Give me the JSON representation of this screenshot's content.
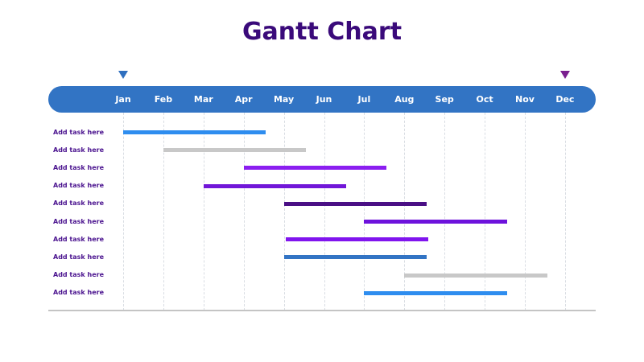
{
  "title": "Gantt Chart",
  "months": [
    "Jan",
    "Feb",
    "Mar",
    "Apr",
    "May",
    "Jun",
    "Jul",
    "Aug",
    "Sep",
    "Oct",
    "Nov",
    "Dec"
  ],
  "colors": {
    "title": "#3a0a7a",
    "header": "#3274c4",
    "start_marker": "#2f6fbf",
    "end_marker": "#7a1f8f",
    "label": "#4b148f"
  },
  "markers": {
    "start_month": "Jan",
    "end_month": "Dec"
  },
  "tasks": [
    {
      "label": "Add task here",
      "start": 0.0,
      "end": 3.55,
      "color": "#2e8def"
    },
    {
      "label": "Add task here",
      "start": 1.0,
      "end": 4.55,
      "color": "#c8c8c8"
    },
    {
      "label": "Add task here",
      "start": 3.0,
      "end": 6.55,
      "color": "#8b1ef0"
    },
    {
      "label": "Add task here",
      "start": 2.0,
      "end": 5.55,
      "color": "#7116d8"
    },
    {
      "label": "Add task here",
      "start": 4.0,
      "end": 7.55,
      "color": "#4a0f85"
    },
    {
      "label": "Add task here",
      "start": 6.0,
      "end": 9.55,
      "color": "#6d12dc"
    },
    {
      "label": "Add task here",
      "start": 4.05,
      "end": 7.6,
      "color": "#8015ee"
    },
    {
      "label": "Add task here",
      "start": 4.0,
      "end": 7.55,
      "color": "#3274c4"
    },
    {
      "label": "Add task here",
      "start": 7.0,
      "end": 10.57,
      "color": "#c8c8c8"
    },
    {
      "label": "Add task here",
      "start": 6.0,
      "end": 9.55,
      "color": "#2e8def"
    }
  ]
}
